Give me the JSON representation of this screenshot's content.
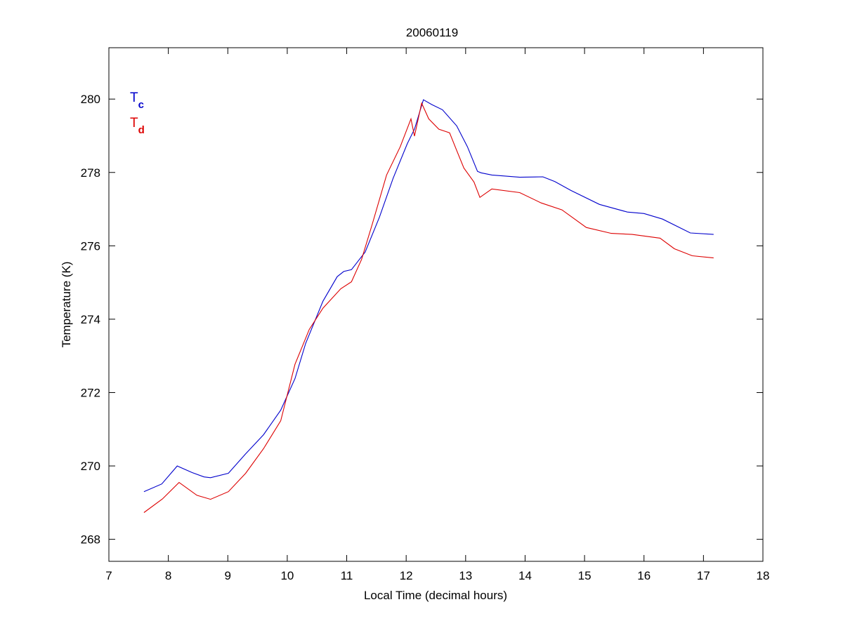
{
  "chart_data": {
    "type": "line",
    "title": "20060119",
    "xlabel": "Local Time (decimal hours)",
    "ylabel": "Temperature (K)",
    "xlim": [
      7,
      18
    ],
    "ylim": [
      267.4,
      281.4
    ],
    "xticks": [
      7,
      8,
      9,
      10,
      11,
      12,
      13,
      14,
      15,
      16,
      17,
      18
    ],
    "yticks": [
      268,
      270,
      272,
      274,
      276,
      278,
      280
    ],
    "grid": false,
    "legend_placement": "top-left",
    "series": [
      {
        "name": "Tc",
        "label_main": "T",
        "label_sub": "c",
        "color": "#0000cc",
        "x": [
          7.59,
          7.89,
          8.15,
          8.4,
          8.6,
          8.71,
          9.01,
          9.3,
          9.6,
          9.89,
          10.13,
          10.31,
          10.6,
          10.84,
          10.95,
          11.08,
          11.31,
          11.55,
          11.78,
          12.02,
          12.14,
          12.29,
          12.43,
          12.61,
          12.85,
          13.03,
          13.2,
          13.26,
          13.44,
          13.91,
          14.3,
          14.5,
          14.77,
          15.25,
          15.72,
          16.0,
          16.31,
          16.78,
          17.17
        ],
        "y": [
          269.3,
          269.51,
          270.0,
          269.82,
          269.7,
          269.68,
          269.8,
          270.33,
          270.85,
          271.52,
          272.38,
          273.34,
          274.49,
          275.16,
          275.3,
          275.35,
          275.83,
          276.78,
          277.84,
          278.79,
          279.18,
          279.98,
          279.85,
          279.71,
          279.27,
          278.7,
          278.03,
          277.99,
          277.93,
          277.87,
          277.88,
          277.75,
          277.51,
          277.13,
          276.92,
          276.88,
          276.73,
          276.35,
          276.31
        ]
      },
      {
        "name": "Td",
        "label_main": "T",
        "label_sub": "d",
        "color": "#dd0000",
        "x": [
          7.59,
          7.9,
          8.18,
          8.48,
          8.71,
          9.01,
          9.3,
          9.6,
          9.89,
          10.13,
          10.37,
          10.6,
          10.9,
          11.08,
          11.25,
          11.43,
          11.67,
          11.9,
          12.08,
          12.14,
          12.26,
          12.38,
          12.55,
          12.73,
          12.85,
          12.97,
          13.14,
          13.24,
          13.44,
          13.91,
          14.27,
          14.62,
          15.03,
          15.45,
          15.8,
          16.27,
          16.51,
          16.81,
          17.17
        ],
        "y": [
          268.73,
          269.1,
          269.55,
          269.2,
          269.09,
          269.3,
          269.8,
          270.47,
          271.23,
          272.77,
          273.72,
          274.3,
          274.83,
          275.02,
          275.63,
          276.59,
          277.93,
          278.7,
          279.46,
          278.99,
          279.89,
          279.46,
          279.18,
          279.08,
          278.6,
          278.12,
          277.74,
          277.32,
          277.55,
          277.45,
          277.17,
          276.98,
          276.5,
          276.34,
          276.31,
          276.21,
          275.92,
          275.73,
          275.67
        ]
      }
    ]
  }
}
